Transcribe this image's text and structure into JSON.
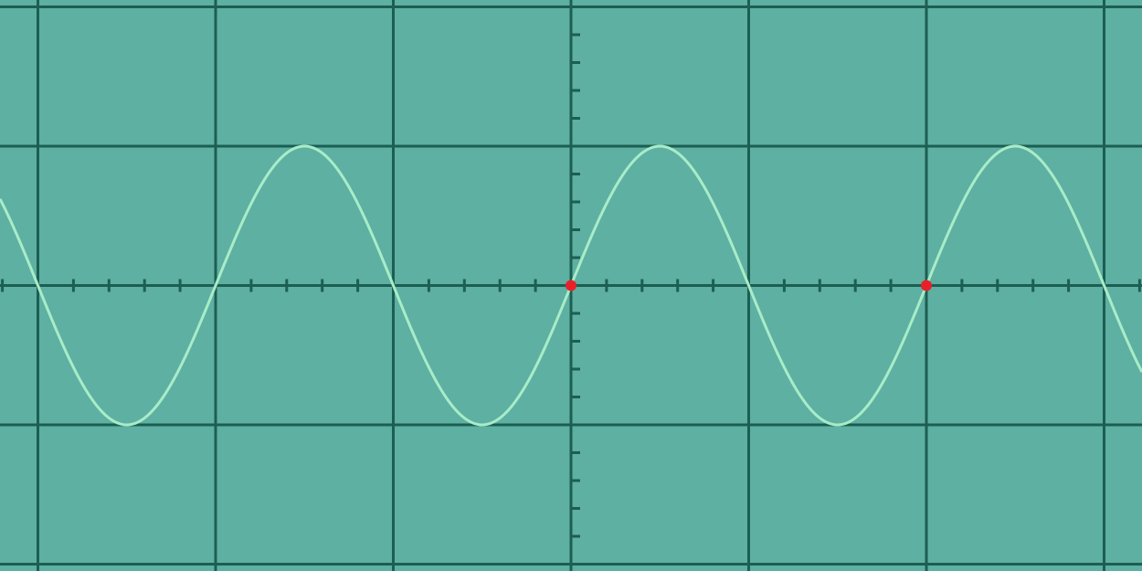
{
  "chart_data": {
    "type": "line",
    "title": "",
    "xlabel": "",
    "ylabel": "",
    "x_divisions": {
      "unit": "div",
      "range": [
        -3.2,
        3.2
      ],
      "major_step": 1,
      "minor_per_major": 5
    },
    "y_divisions": {
      "unit": "div",
      "range": [
        -2.05,
        2.05
      ],
      "major_step": 1,
      "minor_per_major": 5
    },
    "grid": true,
    "series": [
      {
        "name": "sine-trace",
        "function": "sine",
        "amplitude_div": 1.0,
        "period_div": 2.0,
        "phase_zero_crossing_rising_div": 0.0
      }
    ],
    "markers": [
      {
        "name": "zero-crossing-1",
        "x": 0.0,
        "y": 0.0
      },
      {
        "name": "zero-crossing-2",
        "x": 2.0,
        "y": 0.0
      }
    ],
    "colors": {
      "background": "#5db0a2",
      "grid": "#1d5e52",
      "trace": "#a8ecc8",
      "marker": "#e8202a"
    }
  }
}
